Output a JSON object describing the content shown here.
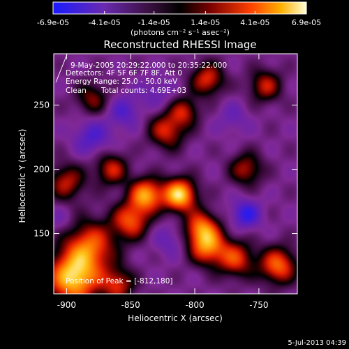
{
  "chart_data": {
    "type": "heatmap",
    "title": "Reconstructed RHESSI Image",
    "xlabel": "Heliocentric X (arcsec)",
    "ylabel": "Heliocentric Y (arcsec)",
    "xlim": [
      -910,
      -720
    ],
    "ylim": [
      103,
      290
    ],
    "x_ticks": [
      -900,
      -850,
      -800,
      -750
    ],
    "y_ticks": [
      150,
      200,
      250
    ],
    "colorbar": {
      "range": [
        -6.9e-05,
        6.9e-05
      ],
      "tick_values": [
        -6.9e-05,
        -4.1e-05,
        -1.4e-05,
        1.4e-05,
        4.1e-05,
        6.9e-05
      ],
      "tick_labels": [
        "-6.9e-05",
        "-4.1e-05",
        "-1.4e-05",
        "1.4e-05",
        "4.1e-05",
        "6.9e-05"
      ],
      "units": "(photons cm⁻² s⁻¹ asec⁻²)"
    },
    "colormap_stops": [
      "#1a1aff",
      "#5a1aa8",
      "#8a2a9a",
      "#000000",
      "#7a0000",
      "#ff3a00",
      "#ffa000",
      "#ffffc8"
    ],
    "peak": {
      "x": -812,
      "y": 180
    },
    "sources": [
      {
        "x": -895,
        "y": 115,
        "v": 6.5e-05,
        "r": 14
      },
      {
        "x": -882,
        "y": 140,
        "v": 4.2e-05,
        "r": 14
      },
      {
        "x": -850,
        "y": 160,
        "v": 4e-05,
        "r": 10
      },
      {
        "x": -838,
        "y": 180,
        "v": 5.5e-05,
        "r": 9
      },
      {
        "x": -812,
        "y": 180,
        "v": 6.9e-05,
        "r": 9
      },
      {
        "x": -795,
        "y": 155,
        "v": 4e-05,
        "r": 9
      },
      {
        "x": -790,
        "y": 140,
        "v": 4.8e-05,
        "r": 10
      },
      {
        "x": -768,
        "y": 130,
        "v": 3.5e-05,
        "r": 10
      },
      {
        "x": -735,
        "y": 125,
        "v": 4.5e-05,
        "r": 10
      },
      {
        "x": -865,
        "y": 200,
        "v": 3e-05,
        "r": 9
      },
      {
        "x": -822,
        "y": 230,
        "v": 3.2e-05,
        "r": 10
      },
      {
        "x": -790,
        "y": 270,
        "v": 3.4e-05,
        "r": 9
      },
      {
        "x": -808,
        "y": 245,
        "v": 2.5e-05,
        "r": 8
      },
      {
        "x": -745,
        "y": 265,
        "v": 2.8e-05,
        "r": 9
      },
      {
        "x": -760,
        "y": 200,
        "v": 2.6e-05,
        "r": 9
      },
      {
        "x": -880,
        "y": 255,
        "v": 2e-05,
        "r": 9
      },
      {
        "x": -900,
        "y": 190,
        "v": 2.8e-05,
        "r": 10
      },
      {
        "x": -860,
        "y": 110,
        "v": 3e-05,
        "r": 9
      },
      {
        "x": -880,
        "y": 225,
        "v": -4e-05,
        "r": 10
      },
      {
        "x": -855,
        "y": 245,
        "v": -3.8e-05,
        "r": 9
      },
      {
        "x": -760,
        "y": 165,
        "v": -5e-05,
        "r": 8
      },
      {
        "x": -820,
        "y": 145,
        "v": -3e-05,
        "r": 9
      },
      {
        "x": -830,
        "y": 260,
        "v": -3e-05,
        "r": 9
      },
      {
        "x": -770,
        "y": 240,
        "v": -2.8e-05,
        "r": 9
      },
      {
        "x": -905,
        "y": 160,
        "v": -2.5e-05,
        "r": 8
      },
      {
        "x": -840,
        "y": 210,
        "v": -1.5e-05,
        "r": 8
      }
    ]
  },
  "annotations": {
    "time_range": "9-May-2005 20:29:22.000 to 20:35:22.000",
    "detectors": "Detectors: 4F 5F 6F 7F 8F, Att 0",
    "energy_range": "Energy Range: 25.0 - 50.0 keV",
    "clean_label": "Clean",
    "total_counts": "Total counts: 4.69E+03",
    "peak_text": "Position of Peak = [-812,180]"
  },
  "footer": {
    "timestamp": "5-Jul-2013 04:39"
  }
}
